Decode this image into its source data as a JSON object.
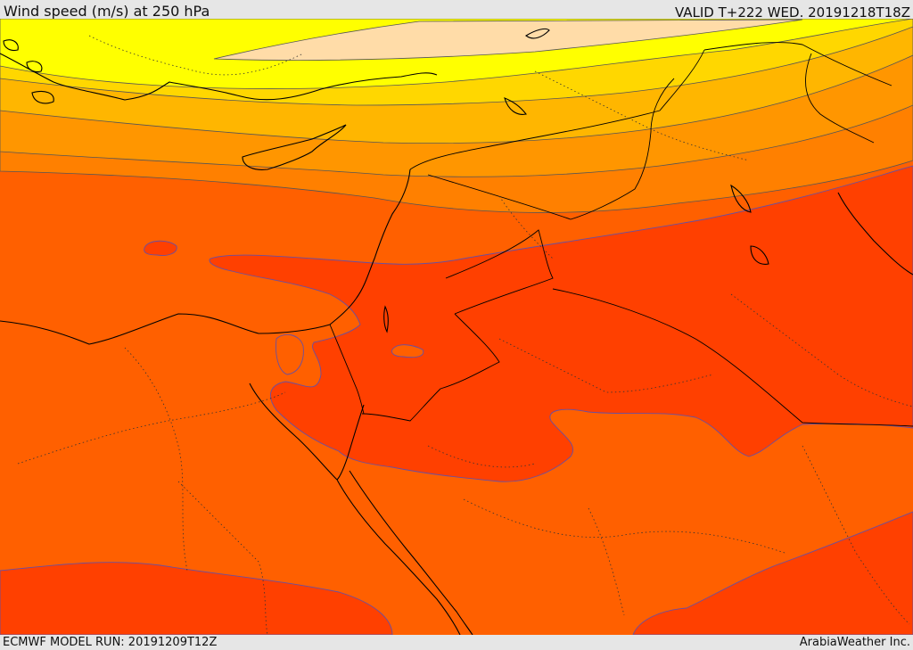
{
  "header": {
    "title": "Wind speed (m/s) at 250 hPa",
    "valid_time": "VALID T+222 WED. 20191218T18Z"
  },
  "footer": {
    "model_run": "ECMWF MODEL RUN: 20191209T12Z",
    "credit": "ArabiaWeather Inc."
  },
  "colors": {
    "band_palest": "#ffdca8",
    "band_yellow": "#ffff00",
    "band_gold": "#ffd700",
    "band_amber": "#ffb600",
    "band_orange": "#ff9600",
    "band_dark_orange": "#ff8000",
    "band_red_orange": "#ff6000",
    "band_red": "#ff4000",
    "contour_line": "#555555",
    "inner_contour": "#6a4fa0",
    "coast": "#000000"
  }
}
